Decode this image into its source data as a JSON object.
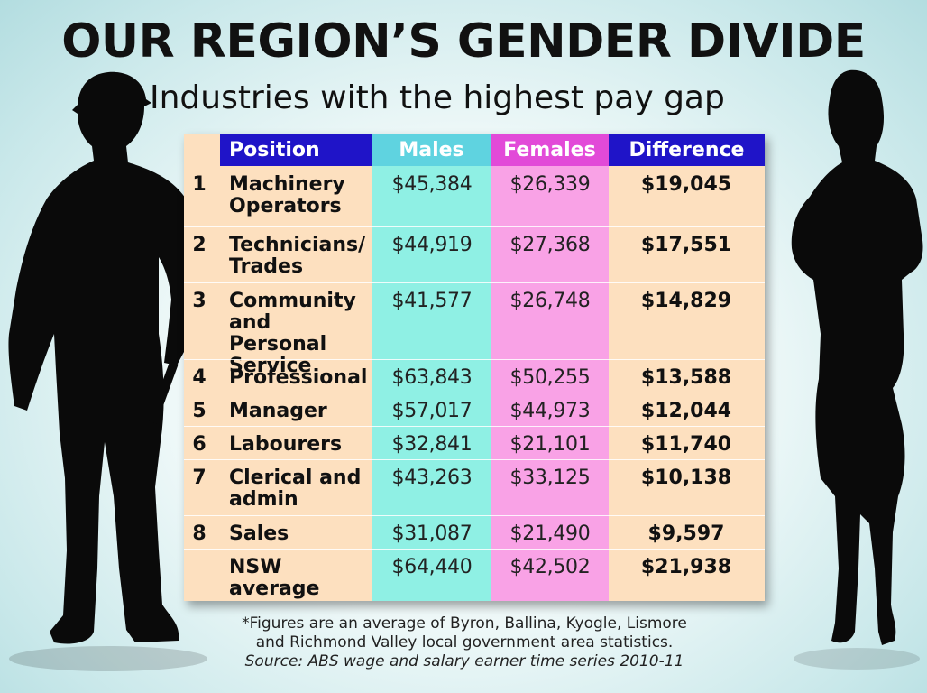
{
  "header": {
    "title": "OUR REGION’S GENDER DIVIDE",
    "subtitle": "Industries with the highest pay gap"
  },
  "colors": {
    "position_header": "#1f14c8",
    "males_header": "#5fd3e0",
    "females_header": "#e24ad8",
    "difference_header": "#1f14c8",
    "position_col": "#fde0bf",
    "males_col": "#8ff0e4",
    "females_col": "#f9a2e6",
    "difference_col": "#fde0bf"
  },
  "chart_data": {
    "type": "table",
    "columns": [
      "Position",
      "Males",
      "Females",
      "Difference"
    ],
    "rows": [
      {
        "rank": "1",
        "position": [
          "Machinery",
          "Operators"
        ],
        "males": "$45,384",
        "females": "$26,339",
        "difference": "$19,045"
      },
      {
        "rank": "2",
        "position": [
          "Technicians/",
          "Trades"
        ],
        "males": "$44,919",
        "females": "$27,368",
        "difference": "$17,551"
      },
      {
        "rank": "3",
        "position": [
          "Community",
          "and Personal",
          "Service"
        ],
        "males": "$41,577",
        "females": "$26,748",
        "difference": "$14,829"
      },
      {
        "rank": "4",
        "position": [
          "Professional"
        ],
        "males": "$63,843",
        "females": "$50,255",
        "difference": "$13,588"
      },
      {
        "rank": "5",
        "position": [
          "Manager"
        ],
        "males": "$57,017",
        "females": "$44,973",
        "difference": "$12,044"
      },
      {
        "rank": "6",
        "position": [
          "Labourers"
        ],
        "males": "$32,841",
        "females": "$21,101",
        "difference": "$11,740"
      },
      {
        "rank": "7",
        "position": [
          "Clerical and",
          "admin"
        ],
        "males": "$43,263",
        "females": "$33,125",
        "difference": "$10,138"
      },
      {
        "rank": "8",
        "position": [
          "Sales"
        ],
        "males": "$31,087",
        "females": "$21,490",
        "difference": "$9,597"
      },
      {
        "rank": "",
        "position": [
          "NSW",
          "average"
        ],
        "males": "$64,440",
        "females": "$42,502",
        "difference": "$21,938"
      }
    ]
  },
  "footnote": {
    "line1": "*Figures are an average of Byron, Ballina, Kyogle, Lismore",
    "line2": "and Richmond Valley local government area statistics.",
    "source": "Source: ABS wage and salary earner time series 2010-11"
  }
}
